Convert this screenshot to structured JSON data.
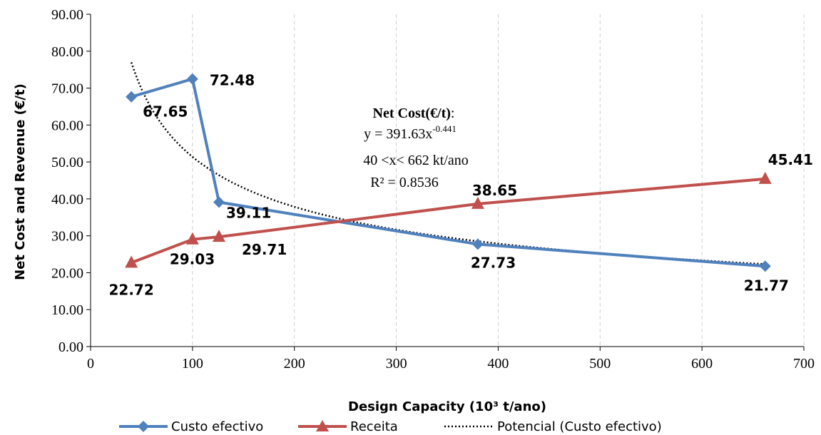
{
  "chart_data": {
    "type": "line",
    "xlabel": "Design Capacity (10³ t/ano)",
    "ylabel": "Net Cost and Revenue (€/t)",
    "xlim": [
      0,
      700
    ],
    "ylim": [
      0,
      90
    ],
    "x_ticks": [
      "0",
      "100",
      "200",
      "300",
      "400",
      "500",
      "600",
      "700"
    ],
    "y_ticks": [
      "0.00",
      "10.00",
      "20.00",
      "30.00",
      "40.00",
      "50.00",
      "60.00",
      "70.00",
      "80.00",
      "90.00"
    ],
    "grid": {
      "vertical": true,
      "horizontal": false
    },
    "legend_position": "bottom",
    "series": [
      {
        "name": "Custo efectivo",
        "color": "#4F81BD",
        "marker": "diamond",
        "x": [
          40,
          100,
          126,
          380,
          662
        ],
        "y": [
          67.65,
          72.48,
          39.11,
          27.73,
          21.77
        ],
        "labels": [
          "67.65",
          "72.48",
          "39.11",
          "27.73",
          "21.77"
        ]
      },
      {
        "name": "Receita",
        "color": "#C0504D",
        "marker": "triangle",
        "x": [
          40,
          100,
          126,
          380,
          662
        ],
        "y": [
          22.72,
          29.03,
          29.71,
          38.65,
          45.41
        ],
        "labels": [
          "22.72",
          "29.03",
          "29.71",
          "38.65",
          "45.41"
        ]
      }
    ],
    "trendline": {
      "name": "Potencial (Custo efectivo)",
      "coef": 391.63,
      "exponent": -0.441,
      "x_start": 40,
      "x_end": 662
    },
    "annotation": {
      "title": "Net Cost(€/t)",
      "title_suffix": ":",
      "equation_base": "y = 391.63x",
      "equation_exp": "-0.441",
      "range": "40 <x< 662 kt/ano",
      "r2": "R² = 0.8536"
    }
  }
}
